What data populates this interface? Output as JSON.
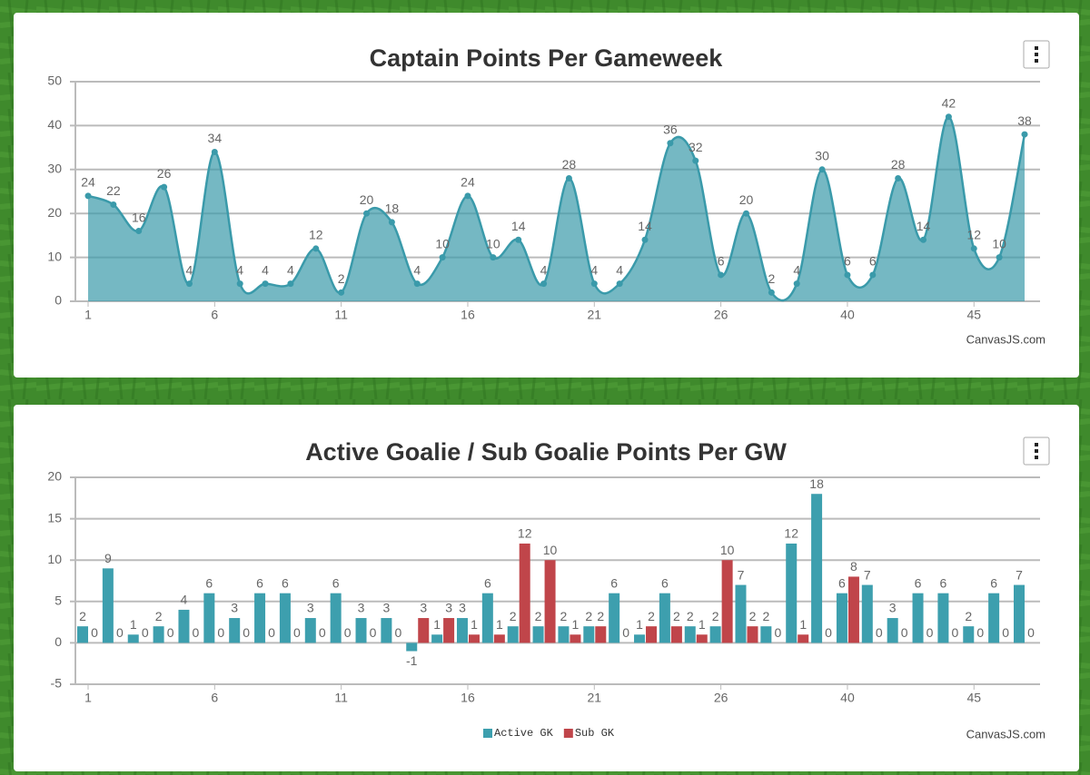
{
  "chart_data": [
    {
      "type": "area",
      "title": "Captain Points Per Gameweek",
      "credit": "CanvasJS.com",
      "categories": [
        1,
        2,
        3,
        4,
        5,
        6,
        7,
        8,
        9,
        10,
        11,
        12,
        13,
        14,
        15,
        16,
        17,
        18,
        19,
        20,
        21,
        22,
        23,
        24,
        25,
        26,
        27,
        28,
        29,
        39,
        40,
        41,
        42,
        43,
        44,
        45,
        46,
        47
      ],
      "xticks": [
        1,
        6,
        11,
        16,
        21,
        26,
        40,
        45
      ],
      "values": [
        24,
        22,
        16,
        26,
        4,
        34,
        4,
        4,
        4,
        12,
        2,
        20,
        18,
        4,
        10,
        24,
        10,
        14,
        4,
        28,
        4,
        4,
        14,
        36,
        32,
        6,
        20,
        2,
        4,
        30,
        6,
        6,
        28,
        14,
        42,
        12,
        10,
        38
      ],
      "color": "#3a9aaa",
      "ylim": [
        0,
        50
      ],
      "yticks": [
        0,
        10,
        20,
        30,
        40,
        50
      ],
      "grid": true
    },
    {
      "type": "bar",
      "title": "Active Goalie / Sub Goalie Points Per GW",
      "credit": "CanvasJS.com",
      "categories": [
        1,
        2,
        3,
        4,
        5,
        6,
        7,
        8,
        9,
        10,
        11,
        12,
        13,
        14,
        15,
        16,
        17,
        18,
        19,
        20,
        21,
        22,
        23,
        24,
        25,
        26,
        27,
        28,
        29,
        39,
        40,
        41,
        42,
        43,
        44,
        45,
        46,
        47
      ],
      "xticks": [
        1,
        6,
        11,
        16,
        21,
        26,
        40,
        45
      ],
      "series": [
        {
          "name": "Active GK",
          "color": "#3d9fae",
          "values": [
            2,
            9,
            1,
            2,
            4,
            6,
            3,
            6,
            6,
            3,
            6,
            3,
            3,
            -1,
            1,
            3,
            6,
            2,
            2,
            2,
            2,
            6,
            1,
            6,
            2,
            2,
            7,
            2,
            12,
            18,
            6,
            7,
            3,
            6,
            6,
            2,
            6,
            7
          ]
        },
        {
          "name": "Sub GK",
          "color": "#c0454a",
          "values": [
            0,
            0,
            0,
            0,
            0,
            0,
            0,
            0,
            0,
            0,
            0,
            0,
            0,
            3,
            3,
            1,
            1,
            12,
            10,
            1,
            2,
            0,
            2,
            2,
            1,
            10,
            2,
            0,
            1,
            0,
            8,
            0,
            0,
            0,
            0,
            0,
            0,
            0
          ]
        }
      ],
      "ylim": [
        -5,
        20
      ],
      "yticks": [
        -5,
        0,
        5,
        10,
        15,
        20
      ],
      "grid": true,
      "legend": "bottom"
    }
  ]
}
